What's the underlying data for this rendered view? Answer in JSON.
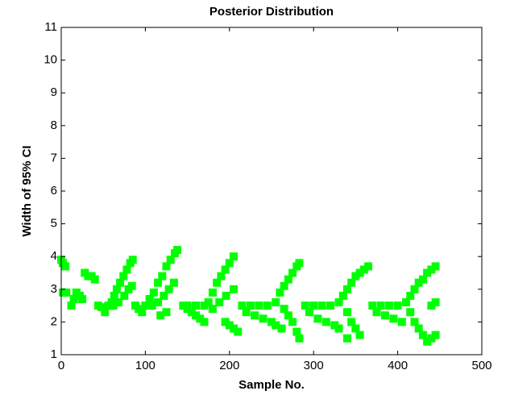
{
  "chart_data": {
    "type": "scatter",
    "title": "Posterior Distribution",
    "x_label": "Sample No.",
    "y_label": "Width of 95% CI",
    "color": "#00ff00",
    "xlim": [
      0,
      500
    ],
    "ylim": [
      1,
      11
    ],
    "xticks": [
      0,
      100,
      200,
      300,
      400,
      500
    ],
    "yticks": [
      1,
      2,
      3,
      4,
      5,
      6,
      7,
      8,
      9,
      10,
      11
    ],
    "x": [
      0,
      2,
      5,
      2,
      6,
      12,
      15,
      18,
      22,
      25,
      28,
      32,
      36,
      40,
      44,
      48,
      52,
      56,
      60,
      63,
      66,
      70,
      74,
      78,
      82,
      85,
      62,
      68,
      75,
      80,
      84,
      88,
      92,
      96,
      100,
      105,
      110,
      115,
      120,
      125,
      130,
      135,
      138,
      108,
      115,
      122,
      128,
      134,
      118,
      125,
      145,
      150,
      155,
      160,
      165,
      170,
      150,
      160,
      170,
      175,
      180,
      185,
      190,
      195,
      200,
      205,
      180,
      188,
      196,
      205,
      205,
      210,
      200,
      195,
      215,
      225,
      235,
      245,
      220,
      230,
      240,
      250,
      255,
      262,
      255,
      260,
      265,
      270,
      275,
      280,
      283,
      265,
      270,
      275,
      280,
      283,
      290,
      300,
      310,
      320,
      295,
      305,
      315,
      325,
      330,
      330,
      335,
      340,
      345,
      350,
      355,
      360,
      365,
      340,
      345,
      350,
      355,
      340,
      370,
      380,
      390,
      400,
      375,
      385,
      395,
      405,
      410,
      415,
      420,
      425,
      430,
      435,
      440,
      445,
      415,
      420,
      425,
      430,
      435,
      440,
      445,
      440,
      445
    ],
    "values": [
      3.9,
      3.8,
      3.7,
      2.9,
      2.9,
      2.5,
      2.7,
      2.9,
      2.8,
      2.7,
      3.5,
      3.4,
      3.4,
      3.3,
      2.5,
      2.45,
      2.3,
      2.5,
      2.6,
      2.8,
      3.0,
      3.2,
      3.4,
      3.6,
      3.8,
      3.9,
      2.5,
      2.6,
      2.8,
      3.0,
      3.1,
      2.5,
      2.4,
      2.3,
      2.5,
      2.7,
      2.9,
      3.2,
      3.4,
      3.7,
      3.9,
      4.1,
      4.2,
      2.5,
      2.6,
      2.8,
      3.0,
      3.2,
      2.2,
      2.3,
      2.5,
      2.4,
      2.3,
      2.2,
      2.1,
      2.0,
      2.5,
      2.5,
      2.5,
      2.6,
      2.9,
      3.2,
      3.4,
      3.6,
      3.8,
      4.0,
      2.4,
      2.6,
      2.8,
      3.0,
      1.8,
      1.7,
      1.9,
      2.0,
      2.5,
      2.5,
      2.5,
      2.5,
      2.3,
      2.2,
      2.1,
      2.0,
      1.9,
      1.8,
      2.6,
      2.9,
      3.1,
      3.3,
      3.5,
      3.7,
      3.8,
      2.4,
      2.2,
      2.0,
      1.7,
      1.5,
      2.5,
      2.5,
      2.5,
      2.5,
      2.3,
      2.1,
      2.0,
      1.9,
      1.8,
      2.6,
      2.8,
      3.0,
      3.2,
      3.4,
      3.5,
      3.6,
      3.7,
      2.3,
      2.0,
      1.8,
      1.6,
      1.5,
      2.5,
      2.5,
      2.5,
      2.5,
      2.3,
      2.2,
      2.1,
      2.0,
      2.6,
      2.8,
      3.0,
      3.2,
      3.3,
      3.5,
      3.6,
      3.7,
      2.3,
      2.0,
      1.8,
      1.6,
      1.4,
      1.5,
      1.6,
      2.5,
      2.6
    ]
  }
}
